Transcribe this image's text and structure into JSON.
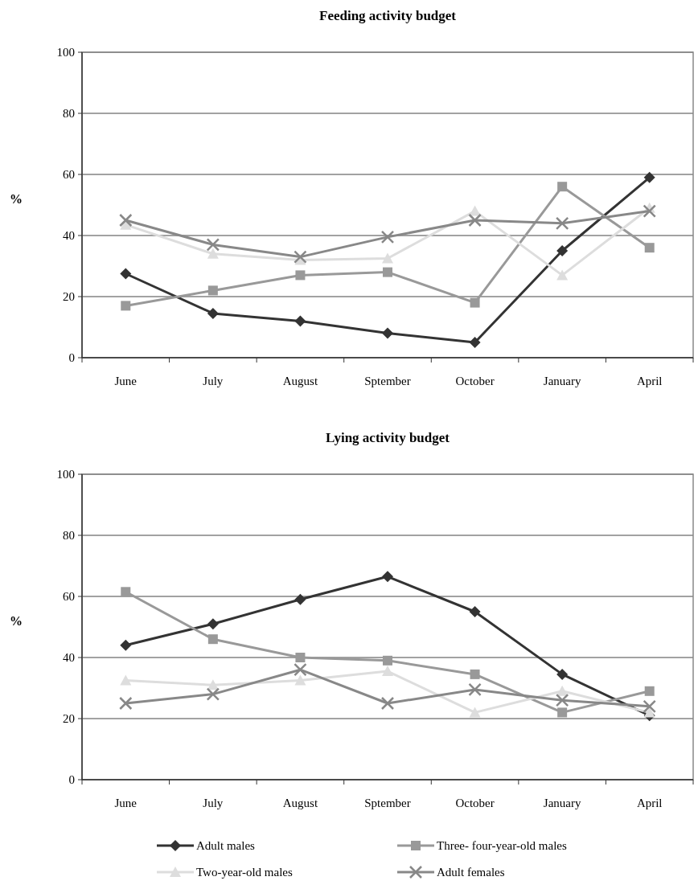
{
  "chart_data": [
    {
      "type": "line",
      "title": "Feeding activity budget",
      "ylabel": "%",
      "categories": [
        "June",
        "July",
        "August",
        "Sptember",
        "October",
        "January",
        "April"
      ],
      "ylim": [
        0,
        100
      ],
      "yticks": [
        0,
        20,
        40,
        60,
        80,
        100
      ],
      "grid": "y",
      "legend": false,
      "series": [
        {
          "color": "#333333",
          "marker": "diamond",
          "values": [
            27.5,
            14.5,
            12,
            8,
            5,
            35,
            59
          ]
        },
        {
          "color": "#999999",
          "marker": "square",
          "values": [
            17,
            22,
            27,
            28,
            18,
            56,
            36
          ]
        },
        {
          "color": "#dddddd",
          "marker": "triangle",
          "values": [
            43.5,
            34,
            32,
            32.5,
            48,
            27,
            49
          ]
        },
        {
          "color": "#888888",
          "marker": "cross",
          "values": [
            45,
            37,
            33,
            39.5,
            45,
            44,
            48
          ]
        }
      ]
    },
    {
      "type": "line",
      "title": "Lying activity budget",
      "ylabel": "%",
      "categories": [
        "June",
        "July",
        "August",
        "Sptember",
        "October",
        "January",
        "April"
      ],
      "ylim": [
        0,
        100
      ],
      "yticks": [
        0,
        20,
        40,
        60,
        80,
        100
      ],
      "grid": "y",
      "legend": "bottom",
      "series": [
        {
          "name": "Adult males",
          "color": "#333333",
          "marker": "diamond",
          "values": [
            44,
            51,
            59,
            66.5,
            55,
            34.5,
            21
          ]
        },
        {
          "name": "Three- four-year-old males",
          "color": "#999999",
          "marker": "square",
          "values": [
            61.5,
            46,
            40,
            39,
            34.5,
            22,
            29
          ]
        },
        {
          "name": "Two-year-old males",
          "color": "#dddddd",
          "marker": "triangle",
          "values": [
            32.5,
            31,
            32.5,
            35.5,
            22,
            29,
            22
          ]
        },
        {
          "name": "Adult females",
          "color": "#888888",
          "marker": "cross",
          "values": [
            25,
            28,
            36,
            25,
            29.5,
            26,
            24
          ]
        }
      ]
    }
  ]
}
